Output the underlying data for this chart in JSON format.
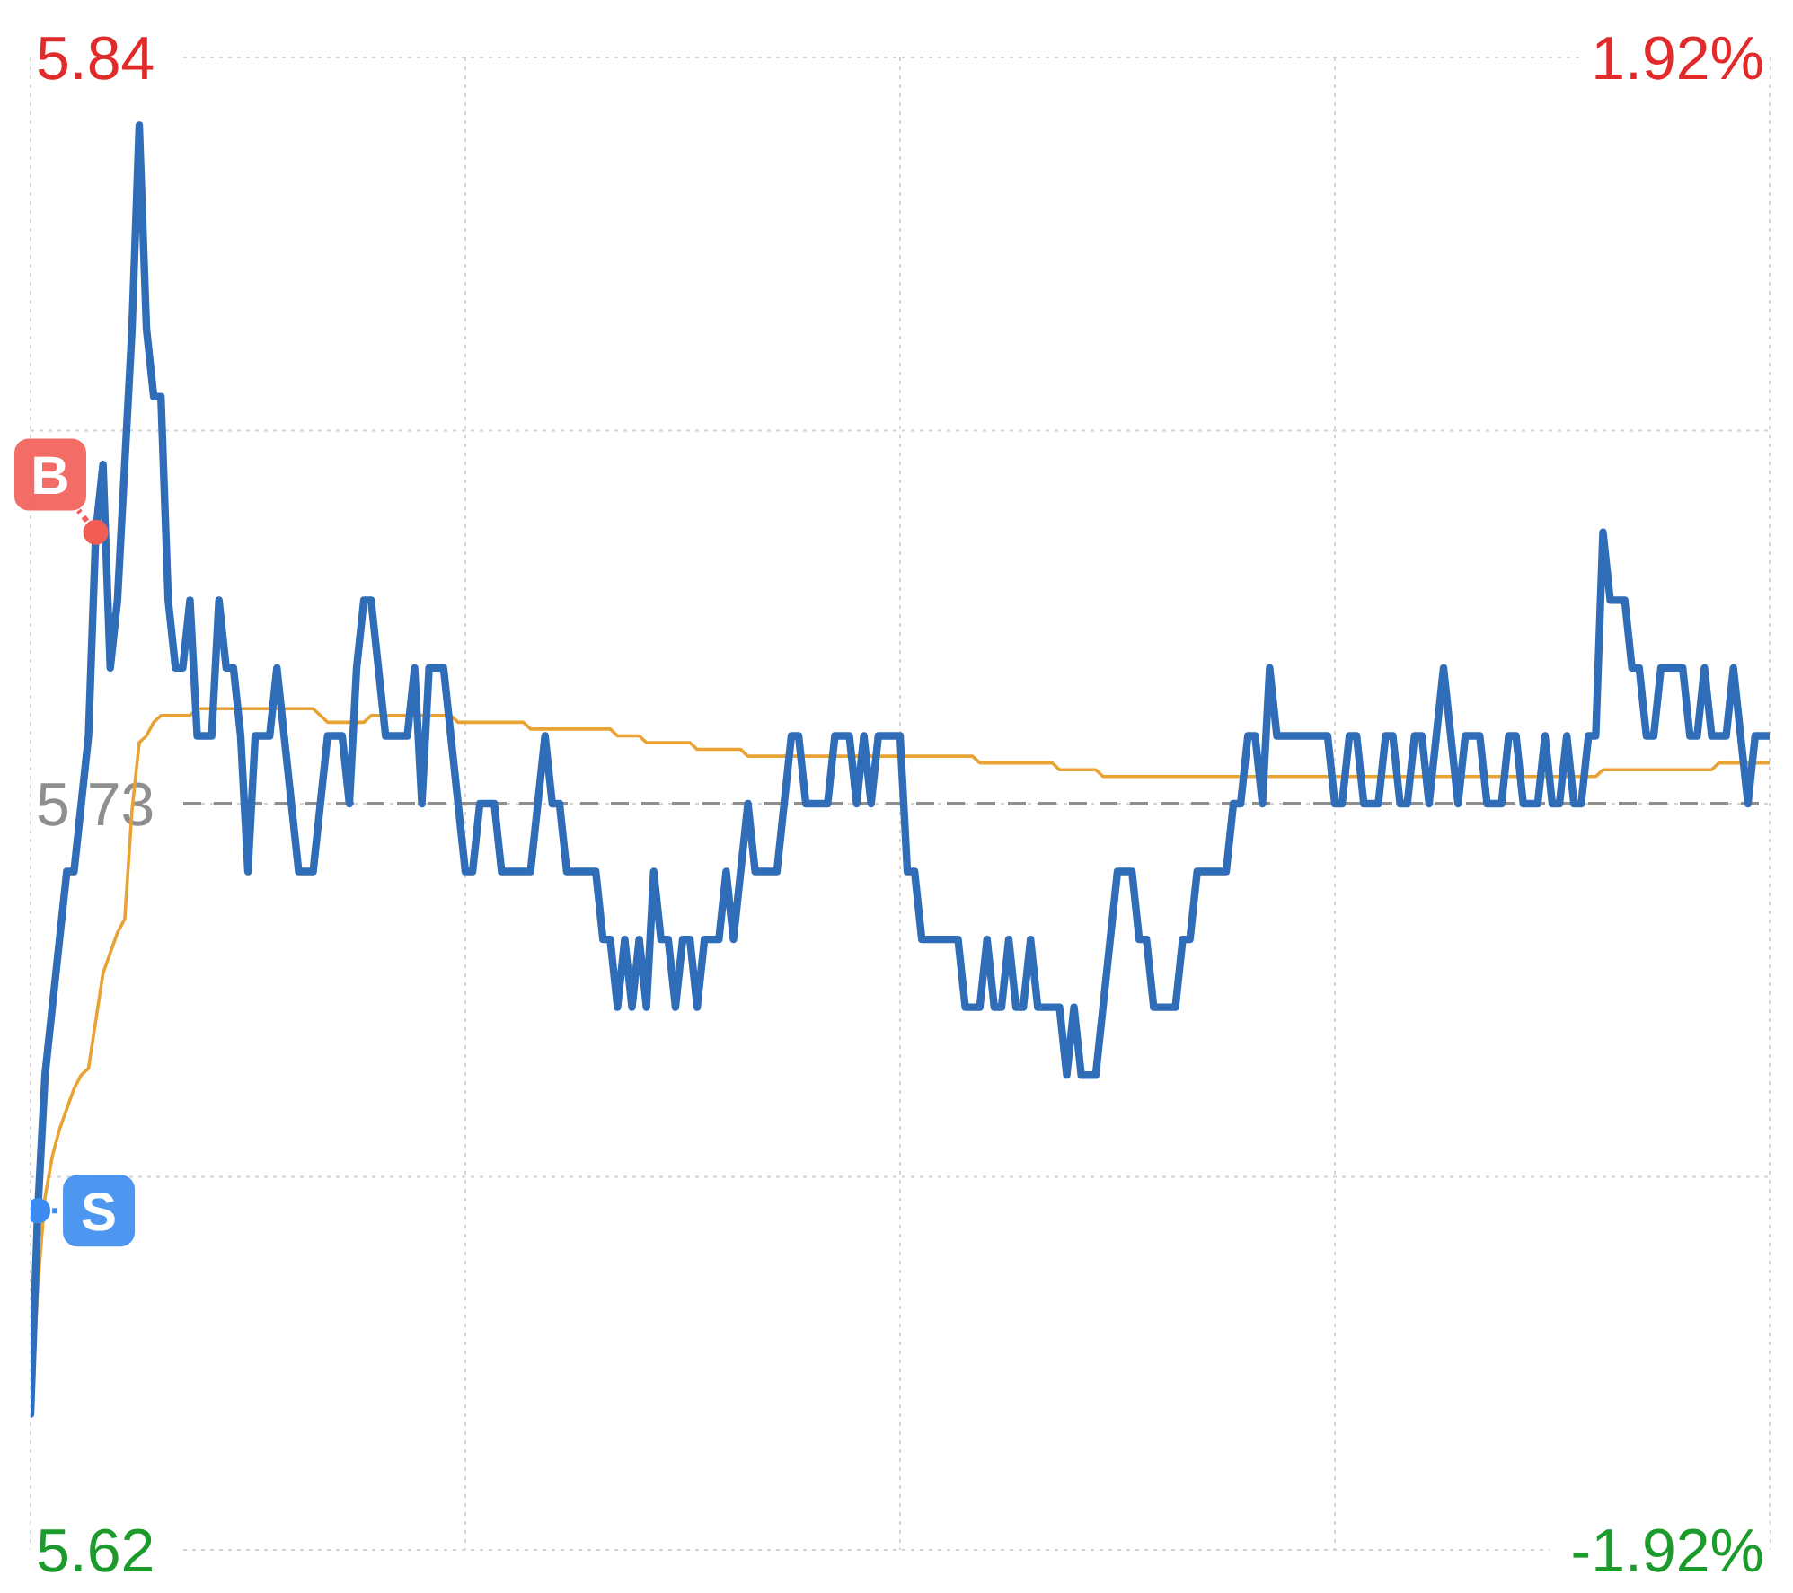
{
  "chart_data": {
    "type": "line",
    "categories": [
      null,
      null,
      null,
      null,
      null,
      null,
      null,
      null,
      null,
      null,
      null,
      null,
      null,
      null,
      null,
      null,
      null,
      null,
      null,
      null,
      null,
      null,
      null,
      null,
      null,
      null,
      null,
      null,
      null,
      null,
      null,
      null,
      null,
      null,
      null,
      null,
      null,
      null,
      null,
      null,
      null,
      null,
      null,
      null,
      null,
      null,
      null,
      null,
      null,
      null,
      null,
      null,
      null,
      null,
      null,
      null,
      null,
      null,
      null,
      null,
      null,
      null,
      null,
      null,
      null,
      null,
      null,
      null,
      null,
      null,
      null,
      null,
      null,
      null,
      null,
      null,
      null,
      null,
      null,
      null,
      null,
      null,
      null,
      null,
      null,
      null,
      null,
      null,
      null,
      null,
      null,
      null,
      null,
      null,
      null,
      null,
      null,
      null,
      null,
      null,
      null,
      null,
      null,
      null,
      null,
      null,
      null,
      null,
      null,
      null,
      null,
      null,
      null,
      null,
      null,
      null,
      null,
      null,
      null,
      null,
      null,
      null,
      null,
      null,
      null,
      null,
      null,
      null,
      null,
      null,
      null,
      null,
      null,
      null,
      null,
      null,
      null,
      null,
      null,
      null,
      null,
      null,
      null,
      null,
      null,
      null,
      null,
      null,
      null,
      null,
      null,
      null,
      null,
      null,
      null,
      null,
      null,
      null,
      null,
      null,
      null,
      null,
      null,
      null,
      null,
      null,
      null,
      null,
      null,
      null,
      null,
      null,
      null,
      null,
      null,
      null,
      null,
      null,
      null,
      null,
      null,
      null,
      null,
      null,
      null,
      null,
      null,
      null,
      null,
      null,
      null,
      null,
      null,
      null,
      null,
      null,
      null,
      null,
      null,
      null,
      null,
      null,
      null,
      null,
      null,
      null,
      null,
      null,
      null,
      null,
      null,
      null,
      null,
      null,
      null,
      null,
      null,
      null,
      null,
      null,
      null,
      null,
      null,
      null,
      null,
      null,
      null,
      null,
      null,
      null,
      null,
      null,
      null,
      null,
      null,
      null,
      null,
      null,
      null,
      null,
      null
    ],
    "series": [
      {
        "color": "#e9a335",
        "values": [
          5.64,
          5.659,
          5.672,
          5.678,
          5.682,
          5.685,
          5.688,
          5.69,
          5.691,
          5.698,
          5.705,
          5.708,
          5.711,
          5.713,
          5.729,
          5.739,
          5.74,
          5.742,
          5.743,
          5.743,
          5.743,
          5.743,
          5.743,
          5.744,
          5.744,
          5.744,
          5.744,
          5.744,
          5.744,
          5.744,
          5.744,
          5.744,
          5.744,
          5.744,
          5.744,
          5.744,
          5.744,
          5.744,
          5.744,
          5.744,
          5.743,
          5.742,
          5.742,
          5.742,
          5.742,
          5.742,
          5.742,
          5.743,
          5.743,
          5.743,
          5.743,
          5.743,
          5.743,
          5.743,
          5.743,
          5.743,
          5.743,
          5.743,
          5.743,
          5.742,
          5.742,
          5.742,
          5.742,
          5.742,
          5.742,
          5.742,
          5.742,
          5.742,
          5.742,
          5.741,
          5.741,
          5.741,
          5.741,
          5.741,
          5.741,
          5.741,
          5.741,
          5.741,
          5.741,
          5.741,
          5.741,
          5.74,
          5.74,
          5.74,
          5.74,
          5.739,
          5.739,
          5.739,
          5.739,
          5.739,
          5.739,
          5.739,
          5.738,
          5.738,
          5.738,
          5.738,
          5.738,
          5.738,
          5.738,
          5.737,
          5.737,
          5.737,
          5.737,
          5.737,
          5.737,
          5.737,
          5.737,
          5.737,
          5.737,
          5.737,
          5.737,
          5.737,
          5.737,
          5.737,
          5.737,
          5.737,
          5.737,
          5.737,
          5.737,
          5.737,
          5.737,
          5.737,
          5.737,
          5.737,
          5.737,
          5.737,
          5.737,
          5.737,
          5.737,
          5.737,
          5.737,
          5.736,
          5.736,
          5.736,
          5.736,
          5.736,
          5.736,
          5.736,
          5.736,
          5.736,
          5.736,
          5.736,
          5.735,
          5.735,
          5.735,
          5.735,
          5.735,
          5.735,
          5.734,
          5.734,
          5.734,
          5.734,
          5.734,
          5.734,
          5.734,
          5.734,
          5.734,
          5.734,
          5.734,
          5.734,
          5.734,
          5.734,
          5.734,
          5.734,
          5.734,
          5.734,
          5.734,
          5.734,
          5.734,
          5.734,
          5.734,
          5.734,
          5.734,
          5.734,
          5.734,
          5.734,
          5.734,
          5.734,
          5.734,
          5.734,
          5.734,
          5.734,
          5.734,
          5.734,
          5.734,
          5.734,
          5.734,
          5.734,
          5.734,
          5.734,
          5.734,
          5.734,
          5.734,
          5.734,
          5.734,
          5.734,
          5.734,
          5.734,
          5.734,
          5.734,
          5.734,
          5.734,
          5.734,
          5.734,
          5.734,
          5.734,
          5.734,
          5.734,
          5.734,
          5.734,
          5.734,
          5.734,
          5.734,
          5.734,
          5.734,
          5.734,
          5.734,
          5.735,
          5.735,
          5.735,
          5.735,
          5.735,
          5.735,
          5.735,
          5.735,
          5.735,
          5.735,
          5.735,
          5.735,
          5.735,
          5.735,
          5.735,
          5.735,
          5.736,
          5.736,
          5.736,
          5.736,
          5.736,
          5.736,
          5.736,
          5.736
        ]
      },
      {
        "color": "#2f6db8",
        "values": [
          5.64,
          5.67,
          5.69,
          5.7,
          5.71,
          5.72,
          5.72,
          5.73,
          5.74,
          5.77,
          5.78,
          5.75,
          5.76,
          5.78,
          5.8,
          5.83,
          5.8,
          5.79,
          5.79,
          5.76,
          5.75,
          5.75,
          5.76,
          5.74,
          5.74,
          5.74,
          5.76,
          5.75,
          5.75,
          5.74,
          5.72,
          5.74,
          5.74,
          5.74,
          5.75,
          5.74,
          5.73,
          5.72,
          5.72,
          5.72,
          5.73,
          5.74,
          5.74,
          5.74,
          5.73,
          5.75,
          5.76,
          5.76,
          5.75,
          5.74,
          5.74,
          5.74,
          5.74,
          5.75,
          5.73,
          5.75,
          5.75,
          5.75,
          5.74,
          5.73,
          5.72,
          5.72,
          5.73,
          5.73,
          5.73,
          5.72,
          5.72,
          5.72,
          5.72,
          5.72,
          5.73,
          5.74,
          5.73,
          5.73,
          5.72,
          5.72,
          5.72,
          5.72,
          5.72,
          5.71,
          5.71,
          5.7,
          5.71,
          5.7,
          5.71,
          5.7,
          5.72,
          5.71,
          5.71,
          5.7,
          5.71,
          5.71,
          5.7,
          5.71,
          5.71,
          5.71,
          5.72,
          5.71,
          5.72,
          5.73,
          5.72,
          5.72,
          5.72,
          5.72,
          5.73,
          5.74,
          5.74,
          5.73,
          5.73,
          5.73,
          5.73,
          5.74,
          5.74,
          5.74,
          5.73,
          5.74,
          5.73,
          5.74,
          5.74,
          5.74,
          5.74,
          5.72,
          5.72,
          5.71,
          5.71,
          5.71,
          5.71,
          5.71,
          5.71,
          5.7,
          5.7,
          5.7,
          5.71,
          5.7,
          5.7,
          5.71,
          5.7,
          5.7,
          5.71,
          5.7,
          5.7,
          5.7,
          5.7,
          5.69,
          5.7,
          5.69,
          5.69,
          5.69,
          5.7,
          5.71,
          5.72,
          5.72,
          5.72,
          5.71,
          5.71,
          5.7,
          5.7,
          5.7,
          5.7,
          5.71,
          5.71,
          5.72,
          5.72,
          5.72,
          5.72,
          5.72,
          5.73,
          5.73,
          5.74,
          5.74,
          5.73,
          5.75,
          5.74,
          5.74,
          5.74,
          5.74,
          5.74,
          5.74,
          5.74,
          5.74,
          5.73,
          5.73,
          5.74,
          5.74,
          5.73,
          5.73,
          5.73,
          5.74,
          5.74,
          5.73,
          5.73,
          5.74,
          5.74,
          5.73,
          5.74,
          5.75,
          5.74,
          5.73,
          5.74,
          5.74,
          5.74,
          5.73,
          5.73,
          5.73,
          5.74,
          5.74,
          5.73,
          5.73,
          5.73,
          5.74,
          5.73,
          5.73,
          5.74,
          5.73,
          5.73,
          5.74,
          5.74,
          5.77,
          5.76,
          5.76,
          5.76,
          5.75,
          5.75,
          5.74,
          5.74,
          5.75,
          5.75,
          5.75,
          5.75,
          5.74,
          5.74,
          5.75,
          5.74,
          5.74,
          5.74,
          5.75,
          5.74,
          5.73,
          5.74,
          5.74,
          5.74
        ]
      },
      {
        "type": "scatter",
        "name": "B",
        "color": "#f25c54",
        "marker": "circle",
        "values": [
          null,
          null,
          null,
          null,
          null,
          null,
          null,
          null,
          null,
          5.77,
          null,
          null,
          null,
          null,
          null,
          null,
          null,
          null,
          null,
          null,
          null,
          null,
          null,
          null,
          null,
          null,
          null,
          null,
          null,
          null,
          null,
          null,
          null,
          null,
          null,
          null,
          null,
          null,
          null,
          null,
          null,
          null,
          null,
          null,
          null,
          null,
          null,
          null,
          null,
          null,
          null,
          null,
          null,
          null,
          null,
          null,
          null,
          null,
          null,
          null,
          null,
          null,
          null,
          null,
          null,
          null,
          null,
          null,
          null,
          null,
          null,
          null,
          null,
          null,
          null,
          null,
          null,
          null,
          null,
          null,
          null,
          null,
          null,
          null,
          null,
          null,
          null,
          null,
          null,
          null,
          null,
          null,
          null,
          null,
          null,
          null,
          null,
          null,
          null,
          null,
          null,
          null,
          null,
          null,
          null,
          null,
          null,
          null,
          null,
          null,
          null,
          null,
          null,
          null,
          null,
          null,
          null,
          null,
          null,
          null,
          null,
          null,
          null,
          null,
          null,
          null,
          null,
          null,
          null,
          null,
          null,
          null,
          null,
          null,
          null,
          null,
          null,
          null,
          null,
          null,
          null,
          null,
          null,
          null,
          null,
          null,
          null,
          null,
          null,
          null,
          null,
          null,
          null,
          null,
          null,
          null,
          null,
          null,
          null,
          null,
          null,
          null,
          null,
          null,
          null,
          null,
          null,
          null,
          null,
          null,
          null,
          null,
          null,
          null,
          null,
          null,
          null,
          null,
          null,
          null,
          null,
          null,
          null,
          null,
          null,
          null,
          null,
          null,
          null,
          null,
          null,
          null,
          null,
          null,
          null,
          null,
          null,
          null,
          null,
          null,
          null,
          null,
          null,
          null,
          null,
          null,
          null,
          null,
          null,
          null,
          null,
          null,
          null,
          null,
          null,
          null,
          null,
          null,
          null,
          null,
          null,
          null,
          null,
          null,
          null,
          null,
          null,
          null,
          null,
          null,
          null,
          null,
          null,
          null,
          null,
          null,
          null,
          null,
          null,
          null,
          null
        ]
      },
      {
        "type": "scatter",
        "name": "S",
        "color": "#3b8cf0",
        "marker": "circle",
        "values": [
          null,
          5.67,
          null,
          null,
          null,
          null,
          null,
          null,
          null,
          null,
          null,
          null,
          null,
          null,
          null,
          null,
          null,
          null,
          null,
          null,
          null,
          null,
          null,
          null,
          null,
          null,
          null,
          null,
          null,
          null,
          null,
          null,
          null,
          null,
          null,
          null,
          null,
          null,
          null,
          null,
          null,
          null,
          null,
          null,
          null,
          null,
          null,
          null,
          null,
          null,
          null,
          null,
          null,
          null,
          null,
          null,
          null,
          null,
          null,
          null,
          null,
          null,
          null,
          null,
          null,
          null,
          null,
          null,
          null,
          null,
          null,
          null,
          null,
          null,
          null,
          null,
          null,
          null,
          null,
          null,
          null,
          null,
          null,
          null,
          null,
          null,
          null,
          null,
          null,
          null,
          null,
          null,
          null,
          null,
          null,
          null,
          null,
          null,
          null,
          null,
          null,
          null,
          null,
          null,
          null,
          null,
          null,
          null,
          null,
          null,
          null,
          null,
          null,
          null,
          null,
          null,
          null,
          null,
          null,
          null,
          null,
          null,
          null,
          null,
          null,
          null,
          null,
          null,
          null,
          null,
          null,
          null,
          null,
          null,
          null,
          null,
          null,
          null,
          null,
          null,
          null,
          null,
          null,
          null,
          null,
          null,
          null,
          null,
          null,
          null,
          null,
          null,
          null,
          null,
          null,
          null,
          null,
          null,
          null,
          null,
          null,
          null,
          null,
          null,
          null,
          null,
          null,
          null,
          null,
          null,
          null,
          null,
          null,
          null,
          null,
          null,
          null,
          null,
          null,
          null,
          null,
          null,
          null,
          null,
          null,
          null,
          null,
          null,
          null,
          null,
          null,
          null,
          null,
          null,
          null,
          null,
          null,
          null,
          null,
          null,
          null,
          null,
          null,
          null,
          null,
          null,
          null,
          null,
          null,
          null,
          null,
          null,
          null,
          null,
          null,
          null,
          null,
          null,
          null,
          null,
          null,
          null,
          null,
          null,
          null,
          null,
          null,
          null,
          null,
          null,
          null,
          null,
          null,
          null,
          null,
          null,
          null,
          null,
          null,
          null,
          null
        ]
      }
    ],
    "ylim": [
      5.62,
      5.84
    ],
    "yticks": [
      5.62,
      {
        "value": 5.675,
        "label": null
      },
      5.73,
      {
        "value": 5.785,
        "label": null
      },
      5.84
    ],
    "y2lim": [
      -1.92,
      1.92
    ],
    "y2ticks": [
      {
        "value": -1.92,
        "label": "-1.92%"
      },
      {
        "value": 1.92,
        "label": "1.92%"
      }
    ],
    "ref_lines": [
      {
        "axis": "y",
        "value": 5.73,
        "color": "#8f8f8f",
        "line_style": "dashed"
      }
    ],
    "grid": true,
    "marker": "none"
  }
}
